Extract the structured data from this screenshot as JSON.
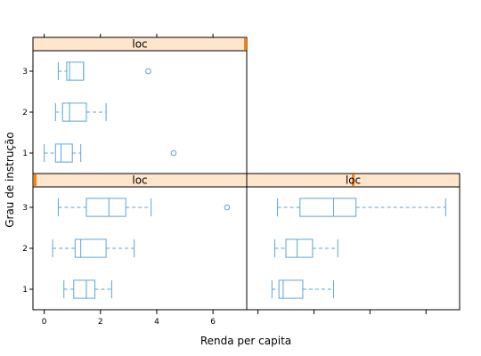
{
  "chart_data": {
    "type": "boxplot",
    "layout": "lattice 2x2",
    "xlabel": "Renda per capita",
    "ylabel": "Grau de instrução",
    "categories": [
      "1",
      "2",
      "3"
    ],
    "x_ticks": [
      0,
      2,
      4,
      6
    ],
    "xlim": [
      -0.4,
      7.2
    ],
    "grid": false,
    "colors": {
      "box": "#5aa6d6",
      "strip_bg": "#ffe5cc",
      "strip_marker": "#ff7f00",
      "panel_border": "#000000"
    },
    "panels": [
      {
        "position": "top-left",
        "strip_label": "loc",
        "boxes": [
          {
            "category": "1",
            "min": 0.0,
            "q1": 0.4,
            "median": 0.6,
            "q3": 1.0,
            "max": 1.3,
            "outliers": [
              4.6
            ]
          },
          {
            "category": "2",
            "min": 0.4,
            "q1": 0.65,
            "median": 0.9,
            "q3": 1.5,
            "max": 2.2,
            "outliers": []
          },
          {
            "category": "3",
            "min": 0.5,
            "q1": 0.8,
            "median": 0.9,
            "q3": 1.4,
            "max": 1.4,
            "outliers": [
              3.7
            ]
          }
        ]
      },
      {
        "position": "bottom-left",
        "strip_label": "loc",
        "boxes": [
          {
            "category": "1",
            "min": 0.7,
            "q1": 1.05,
            "median": 1.5,
            "q3": 1.8,
            "max": 2.4,
            "outliers": []
          },
          {
            "category": "2",
            "min": 0.3,
            "q1": 1.1,
            "median": 1.3,
            "q3": 2.2,
            "max": 3.2,
            "outliers": []
          },
          {
            "category": "3",
            "min": 0.5,
            "q1": 1.5,
            "median": 2.3,
            "q3": 2.9,
            "max": 3.8,
            "outliers": [
              6.5
            ]
          }
        ]
      },
      {
        "position": "bottom-right",
        "strip_label": "loc",
        "boxes": [
          {
            "category": "1",
            "min": 0.5,
            "q1": 0.75,
            "median": 0.9,
            "q3": 1.6,
            "max": 2.7,
            "outliers": []
          },
          {
            "category": "2",
            "min": 0.6,
            "q1": 1.0,
            "median": 1.4,
            "q3": 1.95,
            "max": 2.85,
            "outliers": []
          },
          {
            "category": "3",
            "min": 0.7,
            "q1": 1.5,
            "median": 2.7,
            "q3": 3.5,
            "max": 6.7,
            "outliers": []
          }
        ]
      }
    ]
  }
}
